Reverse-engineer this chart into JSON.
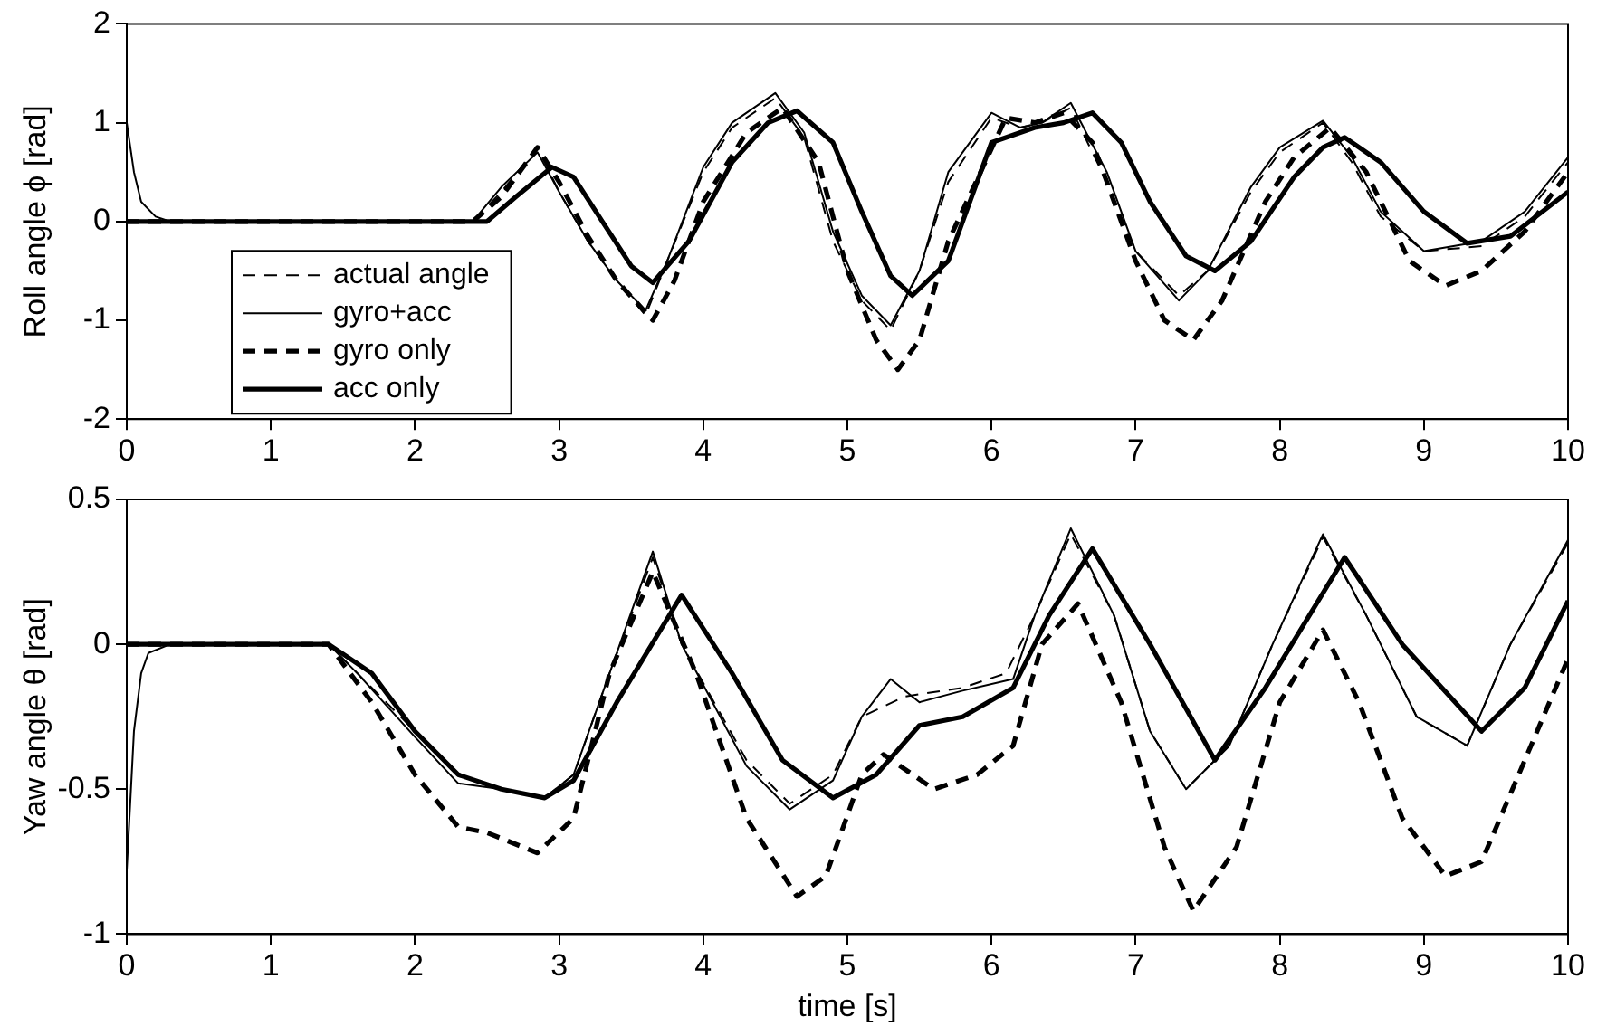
{
  "chart_data": [
    {
      "type": "line",
      "ylabel": "Roll angle ϕ [rad]",
      "xlim": [
        0,
        10
      ],
      "xticks": [
        0,
        1,
        2,
        3,
        4,
        5,
        6,
        7,
        8,
        9,
        10
      ],
      "ylim": [
        -2,
        2
      ],
      "yticks": [
        -2,
        -1,
        0,
        1,
        2
      ],
      "grid": false,
      "legend": "bottom left",
      "marker": "none",
      "series": [
        {
          "name": "actual angle",
          "color": "#000000",
          "line_style": "dashed",
          "x": [
            0,
            0.5,
            1,
            1.5,
            2,
            2.4,
            2.6,
            2.85,
            3.0,
            3.2,
            3.4,
            3.6,
            3.75,
            4.0,
            4.2,
            4.5,
            4.7,
            4.9,
            5.1,
            5.3,
            5.5,
            5.7,
            6.0,
            6.2,
            6.35,
            6.55,
            6.8,
            7.0,
            7.3,
            7.5,
            7.8,
            8.0,
            8.3,
            8.5,
            8.7,
            9.0,
            9.4,
            9.7,
            10
          ],
          "values": [
            0,
            0,
            0,
            0,
            0,
            0,
            0.3,
            0.75,
            0.3,
            -0.2,
            -0.6,
            -0.95,
            -0.4,
            0.5,
            0.95,
            1.25,
            0.85,
            -0.2,
            -0.8,
            -1.1,
            -0.5,
            0.4,
            1.05,
            0.95,
            1.0,
            1.15,
            0.4,
            -0.3,
            -0.75,
            -0.5,
            0.3,
            0.7,
            1.0,
            0.6,
            0.05,
            -0.3,
            -0.25,
            0.05,
            0.6
          ]
        },
        {
          "name": "gyro+acc",
          "color": "#000000",
          "line_style": "solid",
          "x": [
            0,
            0.05,
            0.1,
            0.2,
            0.3,
            0.5,
            1,
            1.5,
            2,
            2.4,
            2.6,
            2.85,
            3.0,
            3.2,
            3.4,
            3.6,
            3.75,
            4.0,
            4.2,
            4.5,
            4.7,
            4.9,
            5.1,
            5.3,
            5.5,
            5.7,
            6.0,
            6.2,
            6.35,
            6.55,
            6.8,
            7.0,
            7.3,
            7.5,
            7.8,
            8.0,
            8.3,
            8.5,
            8.7,
            9.0,
            9.4,
            9.7,
            10
          ],
          "values": [
            1.0,
            0.5,
            0.2,
            0.05,
            0,
            0,
            0,
            0,
            0,
            0,
            0.35,
            0.7,
            0.3,
            -0.2,
            -0.6,
            -0.9,
            -0.4,
            0.55,
            1.0,
            1.3,
            0.9,
            -0.1,
            -0.75,
            -1.05,
            -0.5,
            0.5,
            1.1,
            0.95,
            1.0,
            1.2,
            0.5,
            -0.3,
            -0.8,
            -0.5,
            0.35,
            0.75,
            1.02,
            0.65,
            0.1,
            -0.3,
            -0.2,
            0.1,
            0.65
          ]
        },
        {
          "name": "gyro only",
          "color": "#000000",
          "line_style": "dashed",
          "x": [
            0,
            0.5,
            1,
            1.5,
            2,
            2.4,
            2.6,
            2.85,
            3.0,
            3.2,
            3.4,
            3.65,
            3.8,
            4.0,
            4.3,
            4.55,
            4.8,
            5.0,
            5.2,
            5.35,
            5.5,
            5.7,
            6.1,
            6.3,
            6.5,
            6.7,
            7.0,
            7.2,
            7.4,
            7.6,
            7.9,
            8.1,
            8.35,
            8.6,
            8.9,
            9.15,
            9.4,
            9.7,
            10
          ],
          "values": [
            0,
            0,
            0,
            0,
            0,
            0,
            0.25,
            0.75,
            0.4,
            -0.15,
            -0.6,
            -1.0,
            -0.6,
            0.2,
            0.9,
            1.15,
            0.6,
            -0.5,
            -1.2,
            -1.5,
            -1.2,
            -0.2,
            1.05,
            1.0,
            1.1,
            0.8,
            -0.4,
            -1.0,
            -1.2,
            -0.8,
            0.2,
            0.65,
            0.95,
            0.5,
            -0.4,
            -0.65,
            -0.5,
            -0.1,
            0.5
          ]
        },
        {
          "name": "acc only",
          "color": "#000000",
          "line_style": "solid",
          "x": [
            0,
            0.5,
            1,
            1.5,
            2,
            2.5,
            2.7,
            2.95,
            3.1,
            3.3,
            3.5,
            3.65,
            3.9,
            4.2,
            4.45,
            4.65,
            4.9,
            5.1,
            5.3,
            5.45,
            5.7,
            6.0,
            6.3,
            6.5,
            6.7,
            6.9,
            7.1,
            7.35,
            7.55,
            7.8,
            8.1,
            8.3,
            8.45,
            8.7,
            9.0,
            9.3,
            9.6,
            10
          ],
          "values": [
            0,
            0,
            0,
            0,
            0,
            0,
            0.25,
            0.55,
            0.45,
            0.0,
            -0.45,
            -0.62,
            -0.2,
            0.6,
            1.0,
            1.12,
            0.8,
            0.1,
            -0.55,
            -0.75,
            -0.4,
            0.8,
            0.95,
            1.0,
            1.1,
            0.8,
            0.2,
            -0.35,
            -0.5,
            -0.2,
            0.45,
            0.75,
            0.85,
            0.6,
            0.1,
            -0.22,
            -0.15,
            0.3
          ]
        }
      ]
    },
    {
      "type": "line",
      "xlabel": "time [s]",
      "ylabel": "Yaw angle θ [rad]",
      "xlim": [
        0,
        10
      ],
      "xticks": [
        0,
        1,
        2,
        3,
        4,
        5,
        6,
        7,
        8,
        9,
        10
      ],
      "ylim": [
        -1,
        0.5
      ],
      "yticks": [
        -1,
        -0.5,
        0,
        0.5
      ],
      "grid": false,
      "legend": false,
      "marker": "none",
      "series": [
        {
          "color": "#000000",
          "line_style": "dashed",
          "x": [
            0,
            0.5,
            1,
            1.4,
            1.6,
            2.0,
            2.3,
            2.6,
            2.9,
            3.1,
            3.35,
            3.65,
            3.85,
            4.3,
            4.6,
            4.9,
            5.1,
            5.4,
            5.8,
            6.1,
            6.3,
            6.55,
            6.85,
            7.1,
            7.35,
            7.65,
            7.95,
            8.3,
            8.6,
            8.95,
            9.3,
            9.6,
            10
          ],
          "values": [
            0,
            0,
            0,
            0,
            -0.1,
            -0.3,
            -0.45,
            -0.5,
            -0.53,
            -0.45,
            -0.1,
            0.3,
            0.0,
            -0.4,
            -0.55,
            -0.45,
            -0.25,
            -0.18,
            -0.15,
            -0.1,
            0.1,
            0.38,
            0.1,
            -0.3,
            -0.5,
            -0.35,
            0.0,
            0.37,
            0.1,
            -0.25,
            -0.35,
            0.0,
            0.35
          ]
        },
        {
          "color": "#000000",
          "line_style": "solid",
          "x": [
            0,
            0.05,
            0.1,
            0.15,
            0.3,
            0.5,
            1,
            1.4,
            1.6,
            2.0,
            2.3,
            2.6,
            2.9,
            3.1,
            3.35,
            3.65,
            3.85,
            4.3,
            4.6,
            4.9,
            5.1,
            5.3,
            5.5,
            5.8,
            6.15,
            6.3,
            6.55,
            6.85,
            7.1,
            7.35,
            7.65,
            7.95,
            8.3,
            8.6,
            8.95,
            9.3,
            9.6,
            10
          ],
          "values": [
            -0.78,
            -0.3,
            -0.1,
            -0.03,
            0,
            0,
            0,
            0,
            -0.1,
            -0.32,
            -0.48,
            -0.5,
            -0.53,
            -0.45,
            -0.1,
            0.32,
            0.0,
            -0.42,
            -0.57,
            -0.47,
            -0.25,
            -0.12,
            -0.2,
            -0.16,
            -0.12,
            0.1,
            0.4,
            0.1,
            -0.3,
            -0.5,
            -0.35,
            0.0,
            0.38,
            0.1,
            -0.25,
            -0.35,
            0.0,
            0.36
          ]
        },
        {
          "color": "#000000",
          "line_style": "dashed",
          "x": [
            0,
            0.5,
            1,
            1.4,
            1.7,
            2.0,
            2.3,
            2.5,
            2.85,
            3.1,
            3.35,
            3.65,
            3.95,
            4.3,
            4.65,
            4.85,
            5.1,
            5.25,
            5.6,
            5.9,
            6.15,
            6.35,
            6.6,
            6.9,
            7.2,
            7.4,
            7.7,
            8.0,
            8.3,
            8.55,
            8.85,
            9.15,
            9.4,
            9.7,
            10
          ],
          "values": [
            0,
            0,
            0,
            0,
            -0.2,
            -0.45,
            -0.63,
            -0.65,
            -0.72,
            -0.6,
            -0.1,
            0.25,
            -0.1,
            -0.6,
            -0.87,
            -0.8,
            -0.45,
            -0.38,
            -0.5,
            -0.45,
            -0.35,
            0.0,
            0.14,
            -0.2,
            -0.7,
            -0.92,
            -0.7,
            -0.2,
            0.05,
            -0.2,
            -0.6,
            -0.8,
            -0.75,
            -0.4,
            -0.05
          ]
        },
        {
          "color": "#000000",
          "line_style": "solid",
          "x": [
            0,
            0.5,
            1,
            1.4,
            1.7,
            2.0,
            2.3,
            2.6,
            2.9,
            3.1,
            3.4,
            3.85,
            4.2,
            4.55,
            4.9,
            5.2,
            5.5,
            5.8,
            6.15,
            6.4,
            6.7,
            7.1,
            7.55,
            7.9,
            8.45,
            8.85,
            9.4,
            9.7,
            10
          ],
          "values": [
            0,
            0,
            0,
            0,
            -0.1,
            -0.3,
            -0.45,
            -0.5,
            -0.53,
            -0.47,
            -0.2,
            0.17,
            -0.1,
            -0.4,
            -0.53,
            -0.45,
            -0.28,
            -0.25,
            -0.15,
            0.1,
            0.33,
            0.0,
            -0.4,
            -0.15,
            0.3,
            0.0,
            -0.3,
            -0.15,
            0.15
          ]
        }
      ]
    }
  ]
}
